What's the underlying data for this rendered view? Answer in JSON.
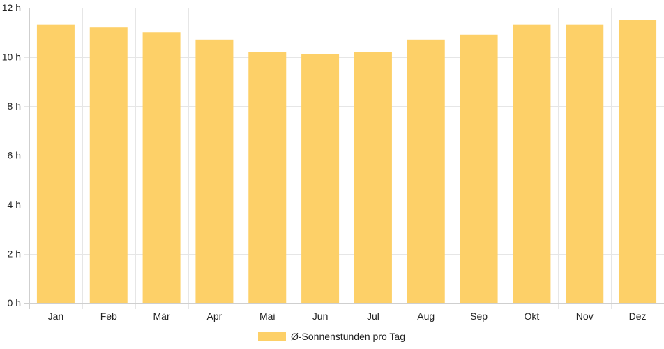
{
  "chart_data": {
    "type": "bar",
    "categories": [
      "Jan",
      "Feb",
      "Mär",
      "Apr",
      "Mai",
      "Jun",
      "Jul",
      "Aug",
      "Sep",
      "Okt",
      "Nov",
      "Dez"
    ],
    "series": [
      {
        "name": "Ø-Sonnenstunden pro Tag",
        "color": "#fdd068",
        "values": [
          11.3,
          11.2,
          11.0,
          10.7,
          10.2,
          10.1,
          10.2,
          10.7,
          10.9,
          11.3,
          11.3,
          11.5
        ]
      }
    ],
    "y_ticks": [
      "0 h",
      "2 h",
      "4 h",
      "6 h",
      "8 h",
      "10 h",
      "12 h"
    ],
    "ylim": [
      0,
      12
    ],
    "grid": true,
    "legend_position": "bottom"
  }
}
